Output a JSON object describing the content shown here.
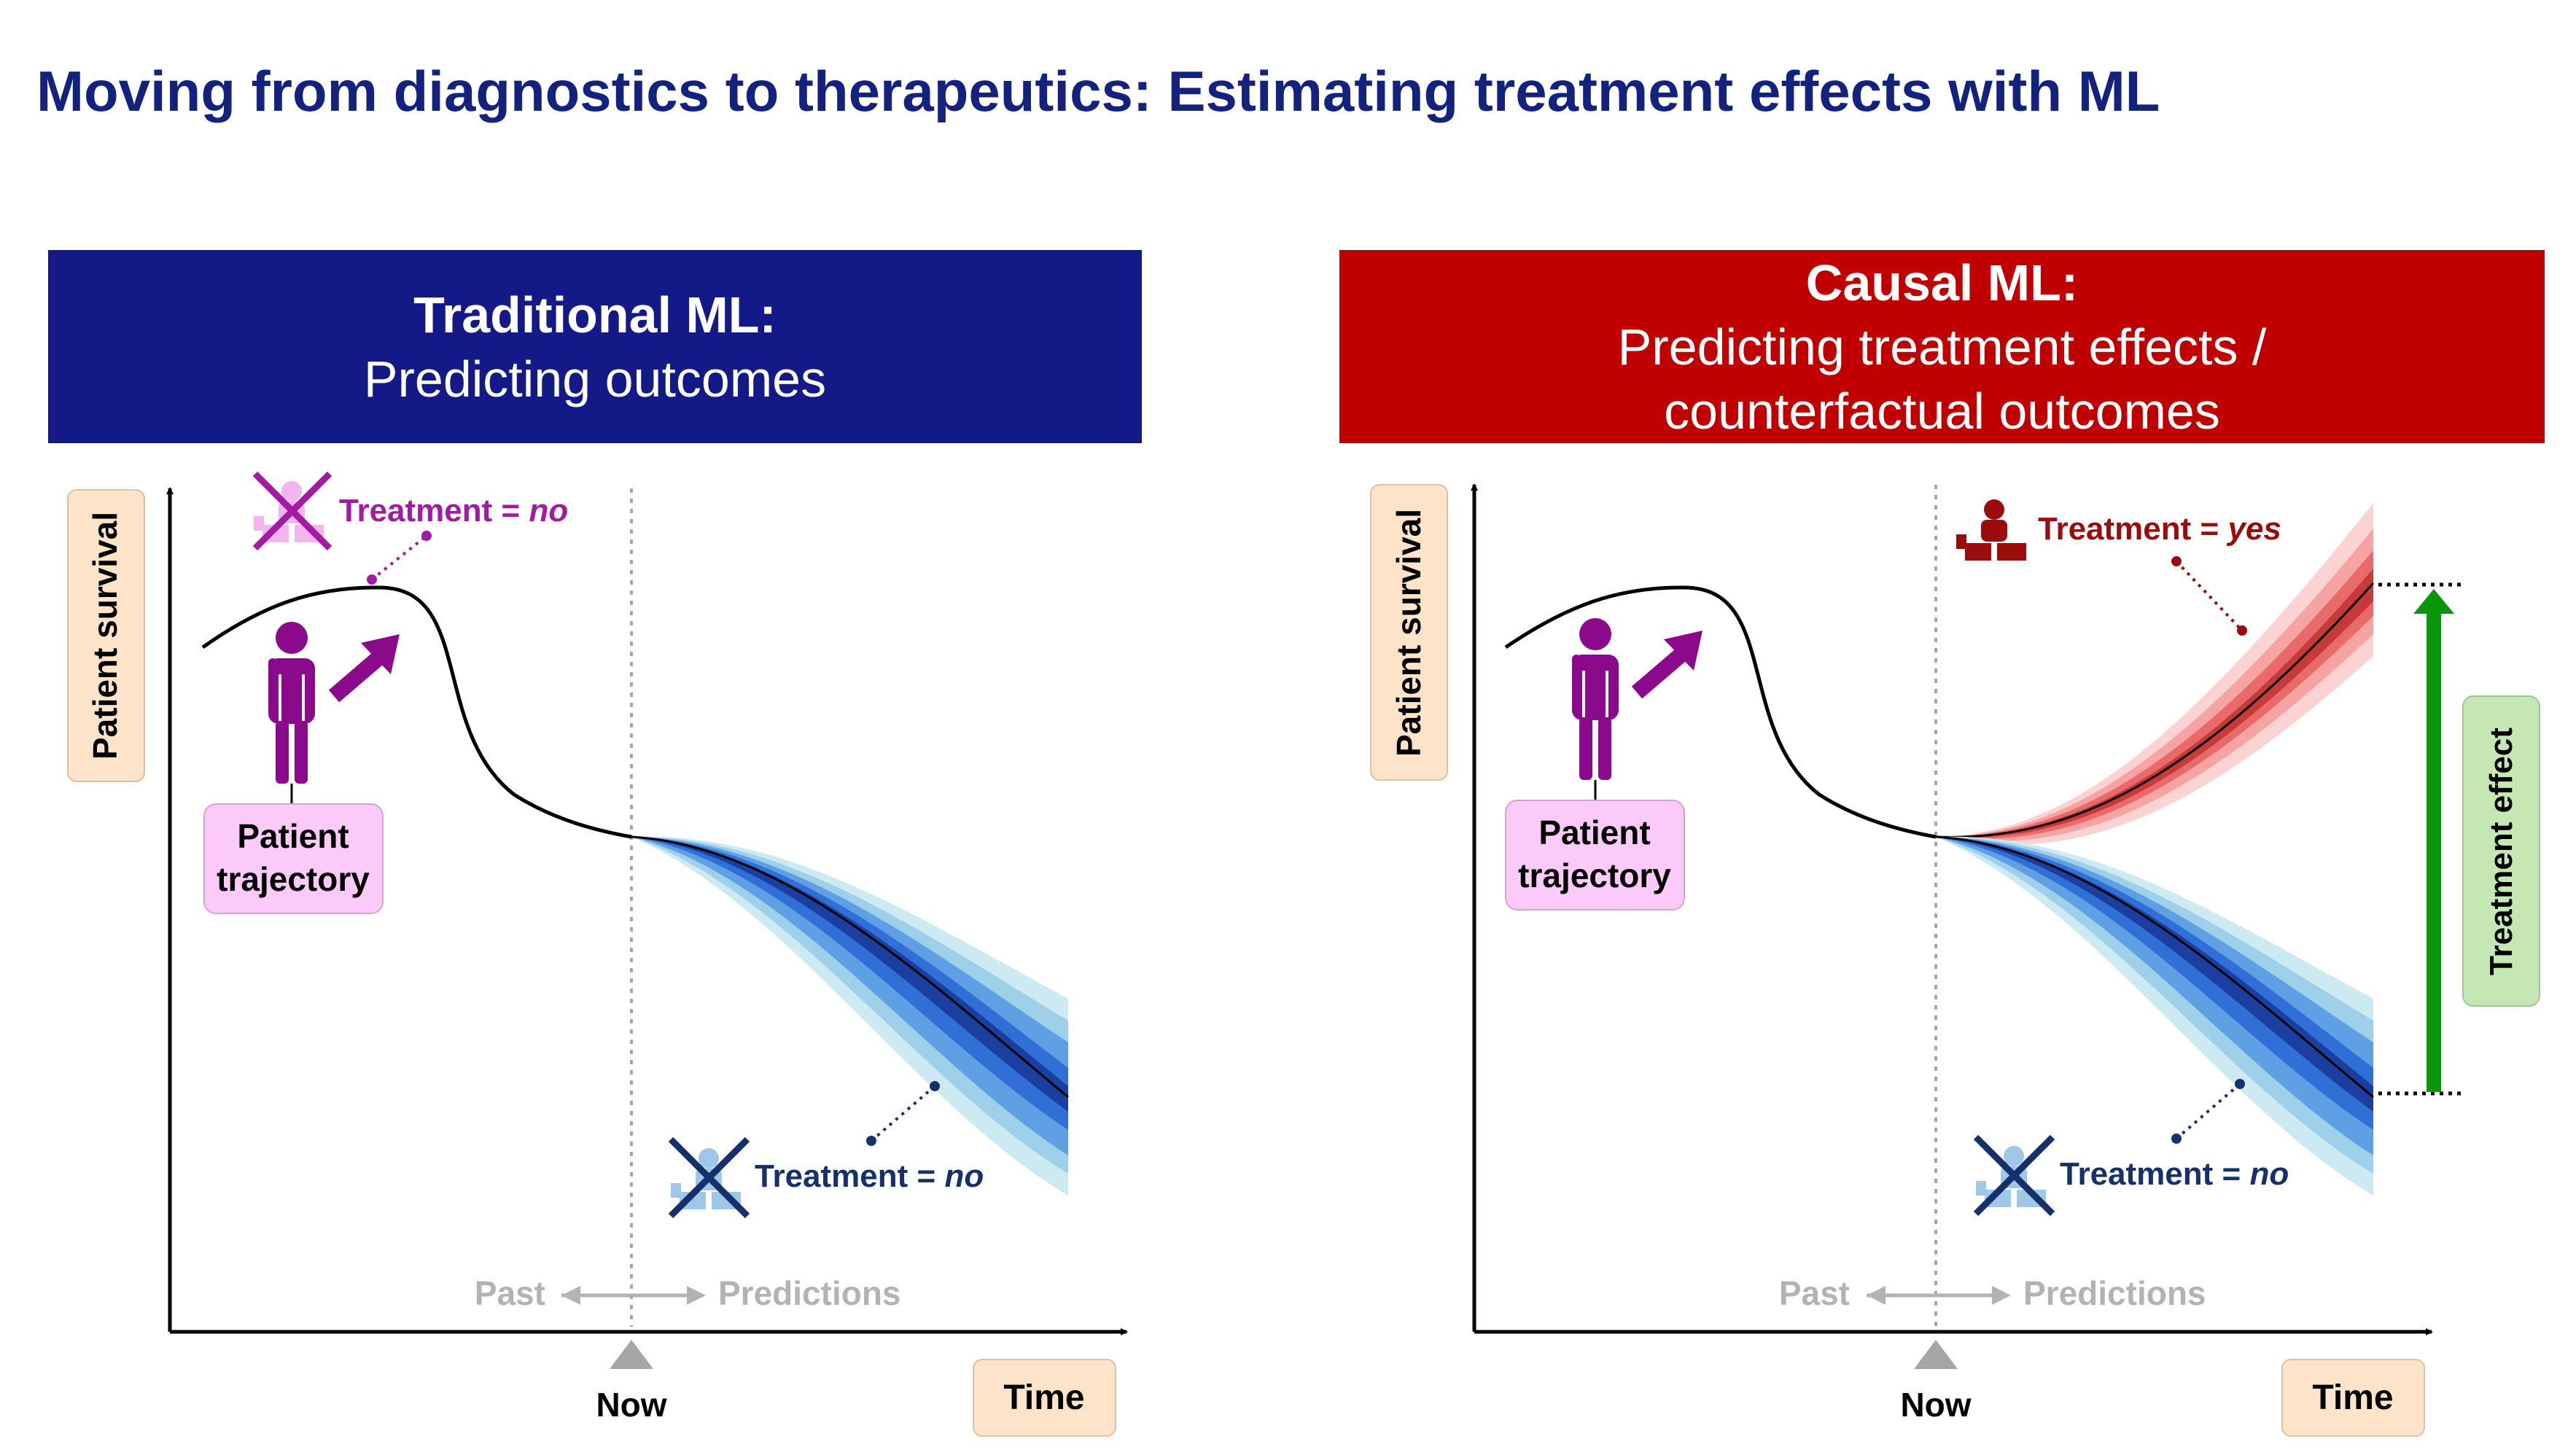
{
  "title": "Moving from diagnostics to therapeutics: Estimating treatment effects with ML",
  "left_panel": {
    "heading": "Traditional ML:",
    "subheading": "Predicting outcomes",
    "y_axis_label": "Patient survival",
    "x_axis_label": "Time",
    "now_label": "Now",
    "past_label": "Past",
    "predictions_label": "Predictions",
    "patient_label_line1": "Patient",
    "patient_label_line2": "trajectory",
    "treatment_past": {
      "prefix": "Treatment = ",
      "value": "no"
    },
    "treatment_future": {
      "prefix": "Treatment = ",
      "value": "no"
    }
  },
  "right_panel": {
    "heading": "Causal ML:",
    "subheading_line1": "Predicting treatment effects /",
    "subheading_line2": "counterfactual outcomes",
    "y_axis_label": "Patient survival",
    "x_axis_label": "Time",
    "now_label": "Now",
    "past_label": "Past",
    "predictions_label": "Predictions",
    "patient_label_line1": "Patient",
    "patient_label_line2": "trajectory",
    "treatment_yes": {
      "prefix": "Treatment = ",
      "value": "yes"
    },
    "treatment_no": {
      "prefix": "Treatment = ",
      "value": "no"
    },
    "effect_label": "Treatment effect"
  },
  "colors": {
    "title": "#13227f",
    "traditional_header": "#131987",
    "causal_header": "#c00000",
    "patient_purple": "#8b0a8b",
    "treatment_no_blue": "#15306b",
    "treatment_yes_red": "#9b0d0d",
    "axis_label_bg": "#fde3c8",
    "patient_label_bg": "#fbcaf8",
    "effect_bg": "#c4e7b3",
    "effect_arrow": "#0a960a",
    "gray_text": "#b3b3b3"
  },
  "icons": [
    "person-icon",
    "trend-arrow-icon",
    "treatment-icon",
    "cross-icon"
  ]
}
